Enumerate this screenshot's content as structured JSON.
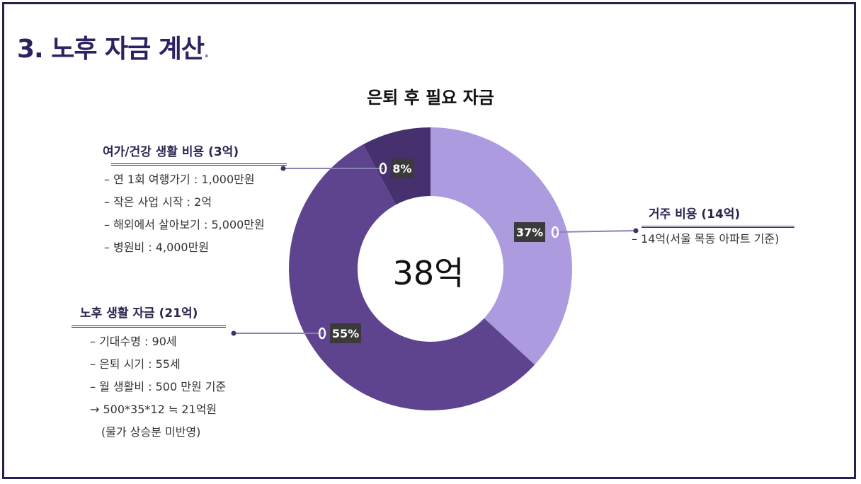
{
  "slide": {
    "title": "3. 노후 자금 계산",
    "title_dot": "."
  },
  "chart_data": {
    "type": "pie",
    "title": "은퇴 후 필요 자금",
    "center_label": "38억",
    "donut": true,
    "slices": [
      {
        "label": "거주 비용 (14억)",
        "value": 14,
        "percent": 37,
        "percent_label": "37%",
        "color": "#ad9be0"
      },
      {
        "label": "노후 생활 자금 (21억)",
        "value": 21,
        "percent": 55,
        "percent_label": "55%",
        "color": "#5e448e"
      },
      {
        "label": "여가/건강 생활 비용 (3억)",
        "value": 3,
        "percent": 8,
        "percent_label": "8%",
        "color": "#46306e"
      }
    ],
    "data_label_color": "#3a3a3a",
    "leader_line_color": "#8a80b8"
  },
  "annotations": {
    "leisure": {
      "heading": "여가/건강 생활 비용 (3억)",
      "items": [
        "– 연 1회 여행가기 : 1,000만원",
        "– 작은 사업 시작 : 2억",
        "– 해외에서 살아보기 : 5,000만원",
        "– 병원비 : 4,000만원"
      ]
    },
    "housing": {
      "heading": "거주 비용 (14억)",
      "items": [
        "– 14억(서울 목동 아파트 기준)"
      ]
    },
    "living": {
      "heading": "노후 생활 자금 (21억)",
      "items": [
        "– 기대수명 : 90세",
        "– 은퇴 시기 : 55세",
        "– 월 생활비 : 500 만원 기준",
        "→ 500*35*12 ≒ 21억원",
        "(물가 상승분 미반영)"
      ]
    }
  }
}
